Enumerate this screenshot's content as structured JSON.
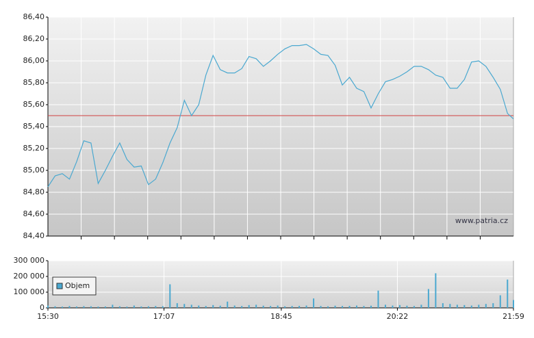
{
  "chart_data": [
    {
      "type": "line",
      "xlim": [
        "15:30",
        "21:59"
      ],
      "ylim": [
        84.4,
        86.4
      ],
      "yticks": [
        {
          "value": 84.4,
          "label": "84,40"
        },
        {
          "value": 84.6,
          "label": "84,60"
        },
        {
          "value": 84.8,
          "label": "84,80"
        },
        {
          "value": 85.0,
          "label": "85,00"
        },
        {
          "value": 85.2,
          "label": "85,20"
        },
        {
          "value": 85.4,
          "label": "85,40"
        },
        {
          "value": 85.6,
          "label": "85,60"
        },
        {
          "value": 85.8,
          "label": "85,80"
        },
        {
          "value": 86.0,
          "label": "86,00"
        },
        {
          "value": 86.2,
          "label": "86,20"
        },
        {
          "value": 86.4,
          "label": "86,40"
        }
      ],
      "grid": true,
      "reference_line": {
        "value": 85.5,
        "color": "#d04040"
      },
      "watermark": "www.patria.cz",
      "x": [
        "15:30",
        "15:36",
        "15:42",
        "15:48",
        "15:54",
        "16:00",
        "16:06",
        "16:12",
        "16:18",
        "16:24",
        "16:30",
        "16:36",
        "16:42",
        "16:48",
        "16:54",
        "17:00",
        "17:06",
        "17:12",
        "17:18",
        "17:24",
        "17:30",
        "17:36",
        "17:42",
        "17:48",
        "17:54",
        "18:00",
        "18:06",
        "18:12",
        "18:18",
        "18:24",
        "18:30",
        "18:36",
        "18:42",
        "18:48",
        "18:54",
        "19:00",
        "19:06",
        "19:12",
        "19:18",
        "19:24",
        "19:30",
        "19:36",
        "19:42",
        "19:48",
        "19:54",
        "20:00",
        "20:06",
        "20:12",
        "20:18",
        "20:24",
        "20:30",
        "20:36",
        "20:42",
        "20:48",
        "20:54",
        "21:00",
        "21:06",
        "21:12",
        "21:18",
        "21:24",
        "21:30",
        "21:36",
        "21:42",
        "21:48",
        "21:54",
        "21:59"
      ],
      "series": [
        {
          "color": "#4aa8d0",
          "values": [
            84.85,
            84.95,
            84.97,
            84.92,
            85.08,
            85.27,
            85.25,
            84.88,
            85.0,
            85.13,
            85.25,
            85.1,
            85.03,
            85.04,
            84.87,
            84.92,
            85.07,
            85.25,
            85.39,
            85.64,
            85.5,
            85.6,
            85.87,
            86.05,
            85.92,
            85.89,
            85.89,
            85.93,
            86.04,
            86.02,
            85.95,
            86.0,
            86.06,
            86.11,
            86.14,
            86.14,
            86.15,
            86.11,
            86.06,
            86.05,
            85.96,
            85.78,
            85.85,
            85.75,
            85.72,
            85.57,
            85.7,
            85.81,
            85.83,
            85.86,
            85.9,
            85.95,
            85.95,
            85.92,
            85.87,
            85.85,
            85.75,
            85.75,
            85.83,
            85.99,
            86.0,
            85.95,
            85.85,
            85.74,
            85.52,
            85.47
          ]
        }
      ]
    },
    {
      "type": "bar",
      "xlim": [
        "15:30",
        "21:59"
      ],
      "xticks": [
        "15:30",
        "17:07",
        "18:45",
        "20:22",
        "21:59"
      ],
      "ylim": [
        0,
        300000
      ],
      "yticks": [
        0,
        {
          "value": 100000,
          "label": "100 000"
        },
        {
          "value": 200000,
          "label": "200 000"
        },
        {
          "value": 300000,
          "label": "300 000"
        }
      ],
      "grid": true,
      "x": [
        "15:30",
        "15:36",
        "15:42",
        "15:48",
        "15:54",
        "16:00",
        "16:06",
        "16:12",
        "16:18",
        "16:24",
        "16:30",
        "16:36",
        "16:42",
        "16:48",
        "16:54",
        "17:00",
        "17:06",
        "17:12",
        "17:18",
        "17:24",
        "17:30",
        "17:36",
        "17:42",
        "17:48",
        "17:54",
        "18:00",
        "18:06",
        "18:12",
        "18:18",
        "18:24",
        "18:30",
        "18:36",
        "18:42",
        "18:48",
        "18:54",
        "19:00",
        "19:06",
        "19:12",
        "19:18",
        "19:24",
        "19:30",
        "19:36",
        "19:42",
        "19:48",
        "19:54",
        "20:00",
        "20:06",
        "20:12",
        "20:18",
        "20:24",
        "20:30",
        "20:36",
        "20:42",
        "20:48",
        "20:54",
        "21:00",
        "21:06",
        "21:12",
        "21:18",
        "21:24",
        "21:30",
        "21:36",
        "21:42",
        "21:48",
        "21:54",
        "21:59"
      ],
      "series": [
        {
          "name": "Objem",
          "color": "#4aa8d0",
          "values": [
            15000,
            10000,
            8000,
            12000,
            9000,
            11000,
            10000,
            8000,
            9000,
            20000,
            10000,
            8000,
            15000,
            9000,
            10000,
            12000,
            11000,
            150000,
            30000,
            25000,
            20000,
            15000,
            12000,
            18000,
            14000,
            40000,
            15000,
            12000,
            18000,
            20000,
            14000,
            12000,
            15000,
            10000,
            12000,
            13000,
            15000,
            60000,
            12000,
            10000,
            14000,
            12000,
            13000,
            15000,
            12000,
            14000,
            110000,
            20000,
            15000,
            18000,
            14000,
            12000,
            20000,
            120000,
            220000,
            30000,
            25000,
            20000,
            18000,
            15000,
            20000,
            25000,
            30000,
            80000,
            180000,
            50000
          ]
        }
      ]
    }
  ]
}
